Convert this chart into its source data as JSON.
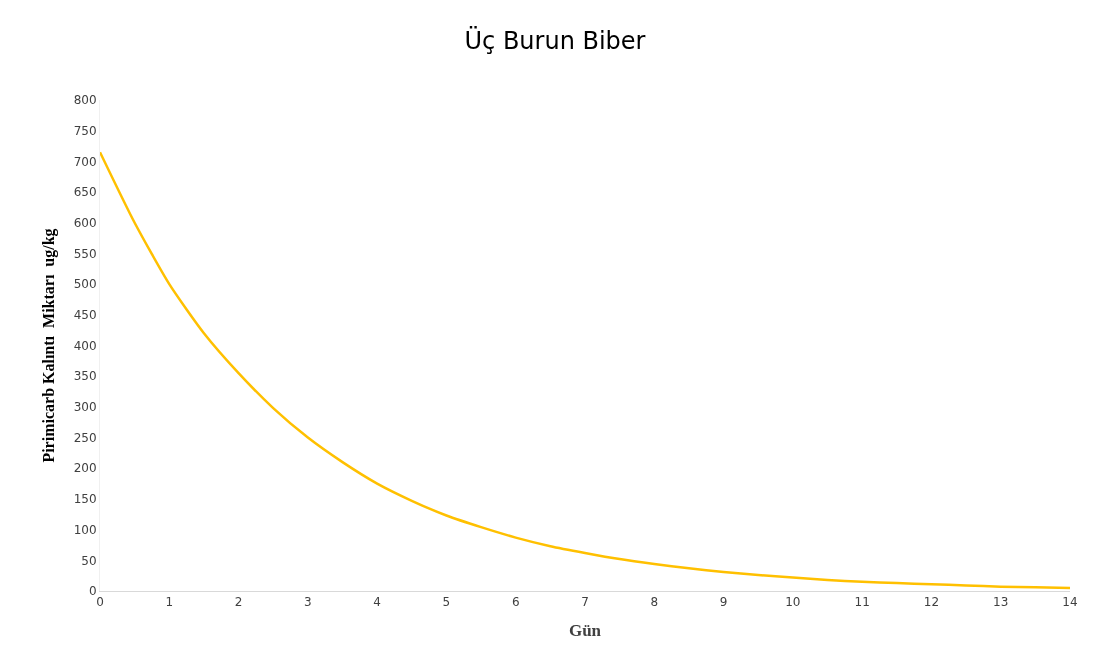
{
  "chart_data": {
    "type": "line",
    "title": "Üç Burun Biber",
    "xlabel": "Gün",
    "ylabel": "Pirimicarb Kalıntı  Miktarı  ug/kg",
    "x": [
      0,
      0.5,
      1,
      1.5,
      2,
      2.5,
      3,
      3.5,
      4,
      4.5,
      5,
      5.5,
      6,
      6.5,
      7,
      7.5,
      8,
      8.5,
      9,
      9.5,
      10,
      10.5,
      11,
      11.5,
      12,
      12.5,
      13,
      13.5,
      14
    ],
    "series": [
      {
        "color": "#ffc000",
        "values": [
          715,
          600,
          500,
          420,
          355,
          298,
          250,
          210,
          175,
          147,
          123,
          104,
          87,
          73,
          62,
          52,
          44,
          37,
          31,
          26,
          22,
          18,
          15,
          13,
          11,
          9,
          7,
          6,
          5
        ]
      }
    ],
    "xlim": [
      0,
      14
    ],
    "xticks": [
      0,
      1,
      2,
      3,
      4,
      5,
      6,
      7,
      8,
      9,
      10,
      11,
      12,
      13,
      14
    ],
    "ylim": [
      0,
      800
    ],
    "yticks": [
      0,
      50,
      100,
      150,
      200,
      250,
      300,
      350,
      400,
      450,
      500,
      550,
      600,
      650,
      700,
      750,
      800
    ],
    "grid": false,
    "marker": "none",
    "line_style": "solid"
  }
}
